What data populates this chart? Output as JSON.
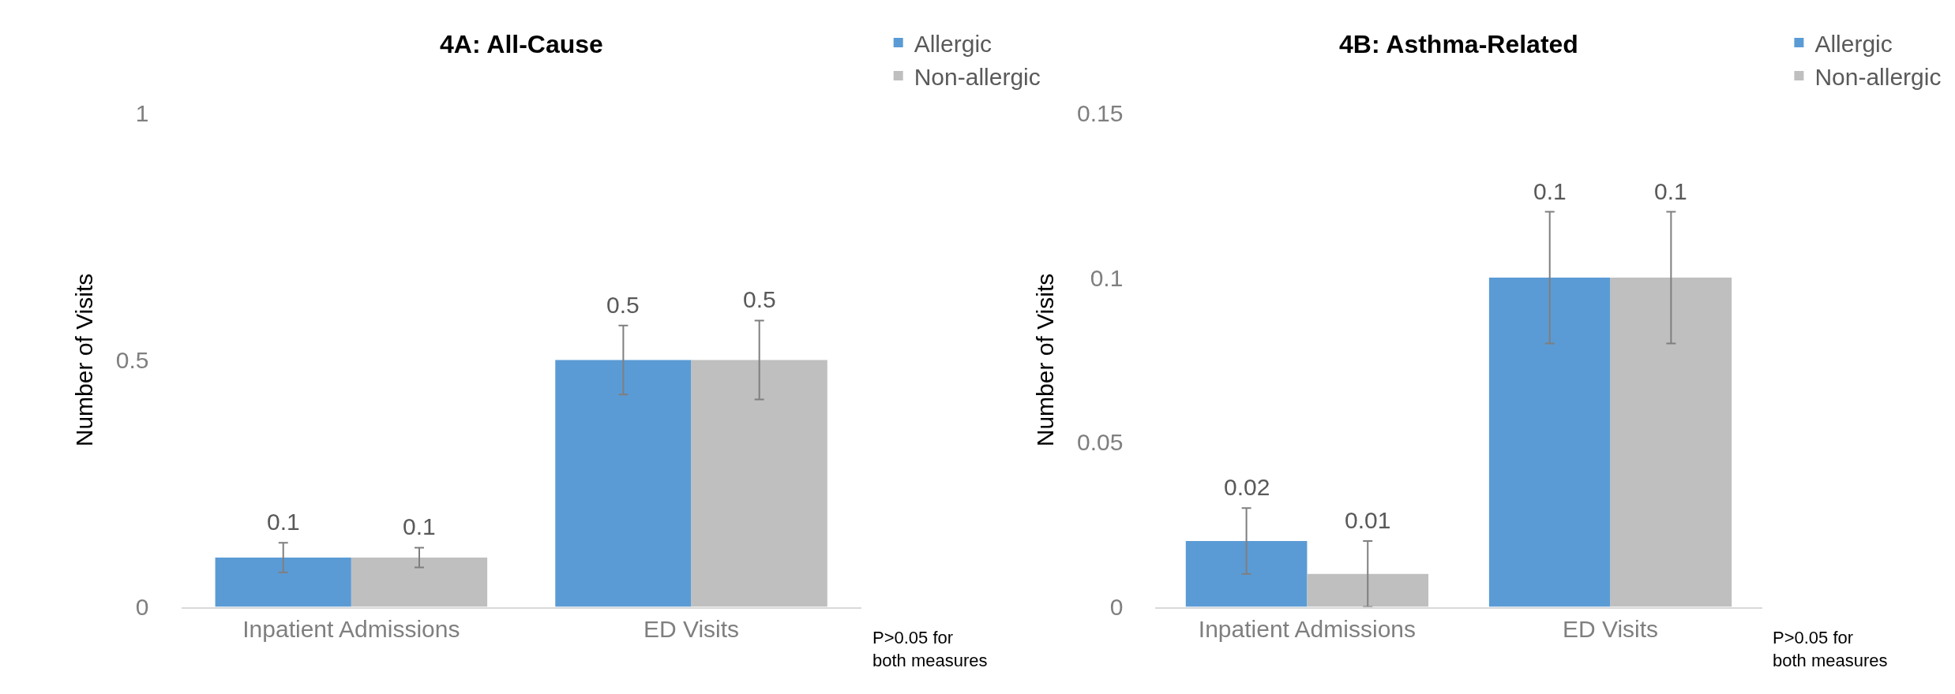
{
  "chart_data": [
    {
      "type": "bar",
      "title": "4A: All-Cause",
      "ylabel": "Number of Visits",
      "categories": [
        "Inpatient Admissions",
        "ED Visits"
      ],
      "series": [
        {
          "name": "Allergic",
          "color": "#5b9bd5",
          "values": [
            0.1,
            0.5
          ],
          "errors": [
            [
              0.07,
              0.13
            ],
            [
              0.43,
              0.57
            ]
          ]
        },
        {
          "name": "Non-allergic",
          "color": "#bfbfbf",
          "values": [
            0.1,
            0.5
          ],
          "errors": [
            [
              0.08,
              0.12
            ],
            [
              0.42,
              0.58
            ]
          ]
        }
      ],
      "ylim": [
        0,
        1
      ],
      "yticks": [
        0,
        0.5,
        1
      ],
      "legend": "top right",
      "data_labels": true,
      "annotations": [
        "P>0.05 for both measures"
      ]
    },
    {
      "type": "bar",
      "title": "4B: Asthma-Related",
      "ylabel": "Number of Visits",
      "categories": [
        "Inpatient Admissions",
        "ED Visits"
      ],
      "series": [
        {
          "name": "Allergic",
          "color": "#5b9bd5",
          "values": [
            0.02,
            0.1
          ],
          "errors": [
            [
              0.01,
              0.03
            ],
            [
              0.08,
              0.12
            ]
          ]
        },
        {
          "name": "Non-allergic",
          "color": "#bfbfbf",
          "values": [
            0.01,
            0.1
          ],
          "errors": [
            [
              0.0,
              0.02
            ],
            [
              0.08,
              0.12
            ]
          ]
        }
      ],
      "ylim": [
        0,
        0.15
      ],
      "yticks": [
        0,
        0.05,
        0.1,
        0.15
      ],
      "legend": "top right",
      "data_labels": true,
      "annotations": [
        "P>0.05 for both measures"
      ]
    }
  ]
}
